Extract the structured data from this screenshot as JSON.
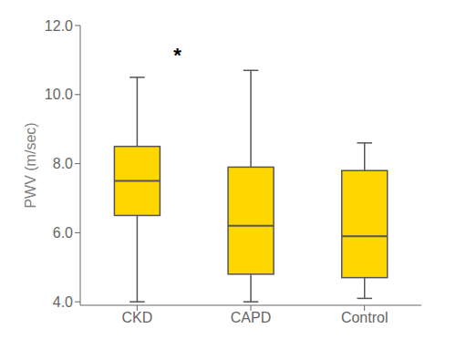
{
  "chart_data": {
    "type": "box",
    "categories": [
      "CKD",
      "CAPD",
      "Control"
    ],
    "boxes": [
      {
        "min": 4.0,
        "q1": 6.5,
        "median": 7.5,
        "q3": 8.5,
        "max": 10.5
      },
      {
        "min": 4.0,
        "q1": 4.8,
        "median": 6.2,
        "q3": 7.9,
        "max": 10.7
      },
      {
        "min": 4.1,
        "q1": 4.7,
        "median": 5.9,
        "q3": 7.8,
        "max": 8.6
      }
    ],
    "color": "#FFD700",
    "ylabel": "PWV (m/sec)",
    "ylim": [
      3.9,
      12.0
    ],
    "yticks": [
      {
        "value": 4.0,
        "label": "4.0"
      },
      {
        "value": 6.0,
        "label": "6.0"
      },
      {
        "value": 8.0,
        "label": "8.0"
      },
      {
        "value": 10.0,
        "label": "10.0"
      },
      {
        "value": 12.0,
        "label": "12.0"
      }
    ],
    "annotations": [
      {
        "text": "*",
        "x": "CKD",
        "y": 11.15
      }
    ],
    "grid": false
  }
}
